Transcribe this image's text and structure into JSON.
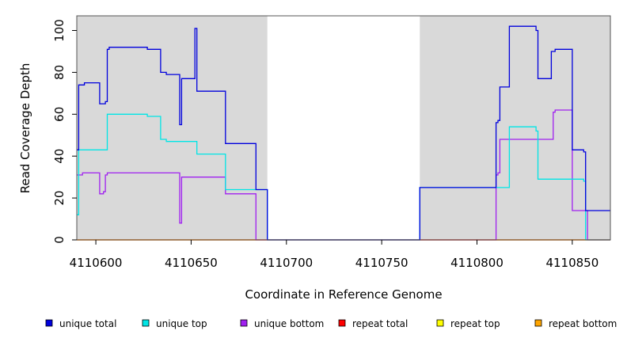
{
  "chart_data": {
    "type": "line",
    "title": "",
    "xlabel": "Coordinate in Reference Genome",
    "ylabel": "Read Coverage Depth",
    "xlim": [
      4110590,
      4110870
    ],
    "ylim": [
      0,
      107
    ],
    "xticks": [
      4110600,
      4110650,
      4110700,
      4110750,
      4110800,
      4110850
    ],
    "yticks": [
      0,
      20,
      40,
      60,
      80,
      100
    ],
    "grid": false,
    "legend_position": "bottom",
    "shaded_regions": [
      {
        "x": [
          4110590,
          4110690
        ],
        "color": "#d9d9d9"
      },
      {
        "x": [
          4110770,
          4110870
        ],
        "color": "#d9d9d9"
      }
    ],
    "series": [
      {
        "name": "unique total",
        "color": "#0000dd",
        "step": [
          [
            4110590,
            43
          ],
          [
            4110591,
            74
          ],
          [
            4110594,
            75
          ],
          [
            4110602,
            65
          ],
          [
            4110605,
            66
          ],
          [
            4110606,
            91
          ],
          [
            4110607,
            92
          ],
          [
            4110614,
            92
          ],
          [
            4110627,
            91
          ],
          [
            4110634,
            80
          ],
          [
            4110637,
            79
          ],
          [
            4110644,
            55
          ],
          [
            4110645,
            77
          ],
          [
            4110652,
            101
          ],
          [
            4110653,
            71
          ],
          [
            4110658,
            71
          ],
          [
            4110668,
            46
          ],
          [
            4110684,
            24
          ],
          [
            4110690,
            0
          ],
          [
            4110770,
            25
          ],
          [
            4110800,
            25
          ],
          [
            4110810,
            56
          ],
          [
            4110811,
            57
          ],
          [
            4110812,
            73
          ],
          [
            4110817,
            102
          ],
          [
            4110831,
            100
          ],
          [
            4110832,
            77
          ],
          [
            4110839,
            90
          ],
          [
            4110841,
            91
          ],
          [
            4110850,
            43
          ],
          [
            4110856,
            42
          ],
          [
            4110857,
            14
          ],
          [
            4110870,
            14
          ]
        ]
      },
      {
        "name": "unique top",
        "color": "#00e5e5",
        "step": [
          [
            4110590,
            12
          ],
          [
            4110591,
            43
          ],
          [
            4110606,
            60
          ],
          [
            4110627,
            59
          ],
          [
            4110634,
            48
          ],
          [
            4110637,
            47
          ],
          [
            4110653,
            41
          ],
          [
            4110668,
            24
          ],
          [
            4110684,
            24
          ],
          [
            4110690,
            0
          ],
          [
            4110770,
            25
          ],
          [
            4110817,
            54
          ],
          [
            4110831,
            52
          ],
          [
            4110832,
            29
          ],
          [
            4110856,
            28
          ],
          [
            4110857,
            0
          ],
          [
            4110870,
            0
          ]
        ]
      },
      {
        "name": "unique bottom",
        "color": "#a020f0",
        "step": [
          [
            4110590,
            31
          ],
          [
            4110593,
            32
          ],
          [
            4110602,
            22
          ],
          [
            4110604,
            23
          ],
          [
            4110605,
            31
          ],
          [
            4110606,
            32
          ],
          [
            4110644,
            8
          ],
          [
            4110645,
            30
          ],
          [
            4110668,
            22
          ],
          [
            4110684,
            0
          ],
          [
            4110810,
            31
          ],
          [
            4110811,
            32
          ],
          [
            4110812,
            48
          ],
          [
            4110840,
            61
          ],
          [
            4110841,
            62
          ],
          [
            4110850,
            14
          ],
          [
            4110857,
            14
          ],
          [
            4110858,
            0
          ],
          [
            4110870,
            0
          ]
        ]
      },
      {
        "name": "repeat total",
        "color": "#ff0000",
        "step": [
          [
            4110590,
            0
          ],
          [
            4110870,
            0
          ]
        ]
      },
      {
        "name": "repeat top",
        "color": "#ffff00",
        "step": [
          [
            4110590,
            0
          ],
          [
            4110870,
            0
          ]
        ]
      },
      {
        "name": "repeat bottom",
        "color": "#ffa500",
        "step": [
          [
            4110590,
            0
          ],
          [
            4110870,
            0
          ]
        ]
      }
    ]
  }
}
